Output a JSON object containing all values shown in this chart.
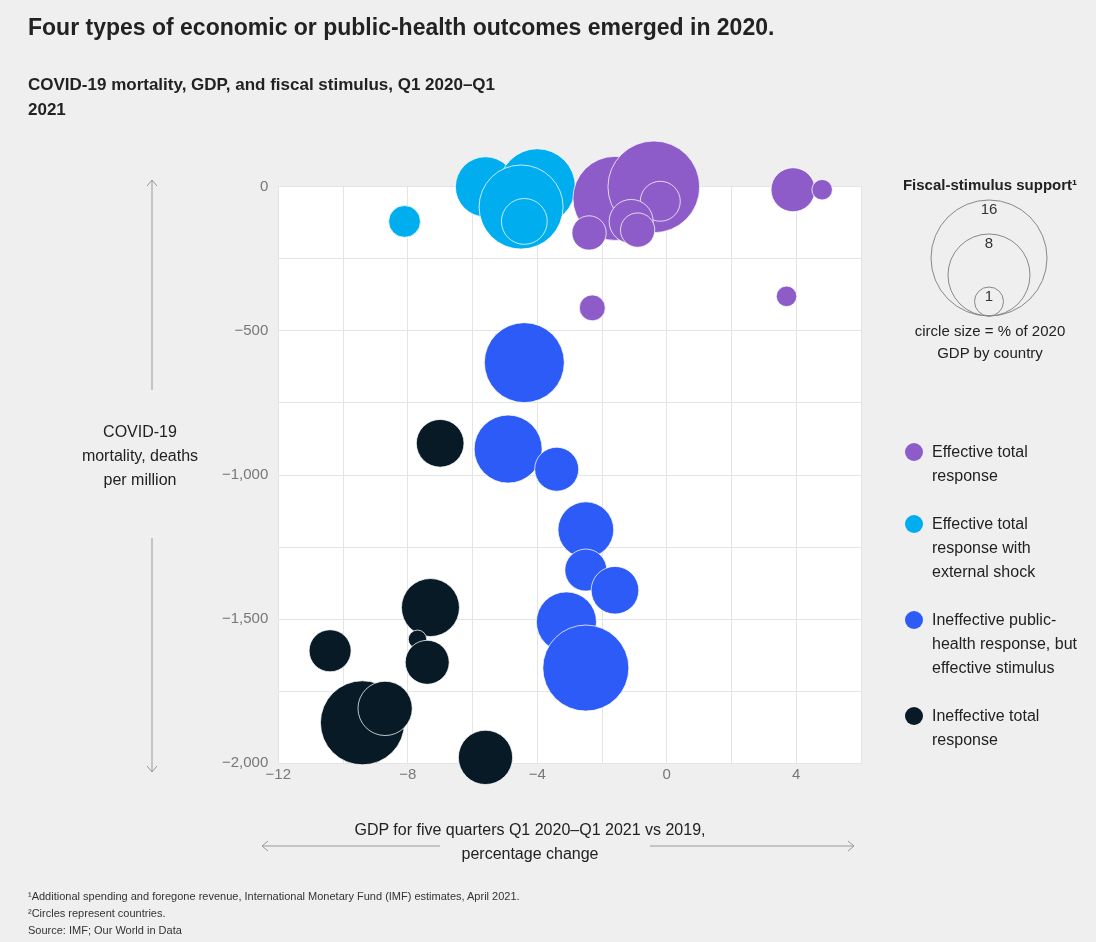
{
  "chart_data": {
    "type": "bubble",
    "title": "Four types of economic or public-health outcomes emerged in 2020.",
    "subtitle": "COVID-19 mortality, GDP, and fiscal stimulus, Q1 2020–Q1 2021",
    "xlabel": "GDP for five quarters Q1 2020–Q1 2021 vs 2019, percentage change",
    "ylabel": "COVID-19 mortality, deaths per million",
    "legend_title": "Fiscal-stimulus support¹",
    "size_legend": [
      16,
      8,
      1
    ],
    "xlim": [
      -12,
      6
    ],
    "xticks": [
      {
        "value": -12,
        "label": "−12"
      },
      {
        "value": -10,
        "label": null
      },
      {
        "value": -8,
        "label": "−8"
      },
      {
        "value": -6,
        "label": null
      },
      {
        "value": -4,
        "label": "−4"
      },
      {
        "value": -2,
        "label": null
      },
      0,
      {
        "value": 2,
        "label": null
      },
      4,
      {
        "value": 6,
        "label": null
      }
    ],
    "ylim": [
      -2000,
      0
    ],
    "yticks": [
      0,
      {
        "value": -250,
        "label": null
      },
      {
        "value": -500,
        "label": "−500"
      },
      {
        "value": -750,
        "label": null
      },
      {
        "value": -1000,
        "label": "−1,000"
      },
      {
        "value": -1250,
        "label": null
      },
      {
        "value": -1500,
        "label": "−1,500"
      },
      {
        "value": -1750,
        "label": null
      },
      {
        "value": -2000,
        "label": "−2,000"
      }
    ],
    "grid": true,
    "legend": "right",
    "series": [
      {
        "name": "Effective total response",
        "color": "#8e5cc9",
        "x": [
          -1.6,
          -0.4,
          -0.2,
          -1.1,
          -0.9,
          -2.4,
          -2.3,
          3.9,
          4.8,
          3.7
        ],
        "values": [
          -40,
          0,
          -50,
          -120,
          -150,
          -160,
          -420,
          -10,
          -10,
          -380
        ],
        "sizes": [
          8.4,
          10,
          1.9,
          2.3,
          1.4,
          1.4,
          0.8,
          2.3,
          0.5,
          0.5
        ]
      },
      {
        "name": "Effective total response with external shock",
        "color": "#00aef0",
        "x": [
          -8.1,
          -5.6,
          -4,
          -4.5,
          -4.4
        ],
        "values": [
          -120,
          0,
          0,
          -70,
          -120
        ],
        "sizes": [
          1.2,
          4.3,
          6.9,
          8.4,
          2.5
        ]
      },
      {
        "name": "Ineffective public-health response, but effective stimulus",
        "color": "#2c5bf7",
        "x": [
          -4.4,
          -4.9,
          -3.4,
          -2.5,
          -2.5,
          -1.6,
          -3.1,
          -2.5
        ],
        "values": [
          -610,
          -910,
          -980,
          -1190,
          -1330,
          -1400,
          -1510,
          -1670
        ],
        "sizes": [
          7.6,
          5.5,
          2.3,
          3.7,
          2.1,
          2.7,
          4.3,
          8.8
        ]
      },
      {
        "name": "Ineffective total response",
        "color": "#071a26",
        "x": [
          -7,
          -7.3,
          -7.7,
          -7.4,
          -10.4,
          -9.4,
          -8.7,
          -5.6
        ],
        "values": [
          -890,
          -1460,
          -1570,
          -1650,
          -1610,
          -1860,
          -1810,
          -1980
        ],
        "sizes": [
          2.7,
          4,
          0.4,
          2.3,
          2.1,
          8.4,
          3.5,
          3.5
        ]
      }
    ],
    "annotations": [
      "circle size = % of 2020 GDP by country",
      "¹Additional spending and foregone revenue, International Monetary Fund (IMF) estimates, April 2021.",
      "²Circles represent countries.",
      "Source: IMF; Our World in Data"
    ]
  }
}
